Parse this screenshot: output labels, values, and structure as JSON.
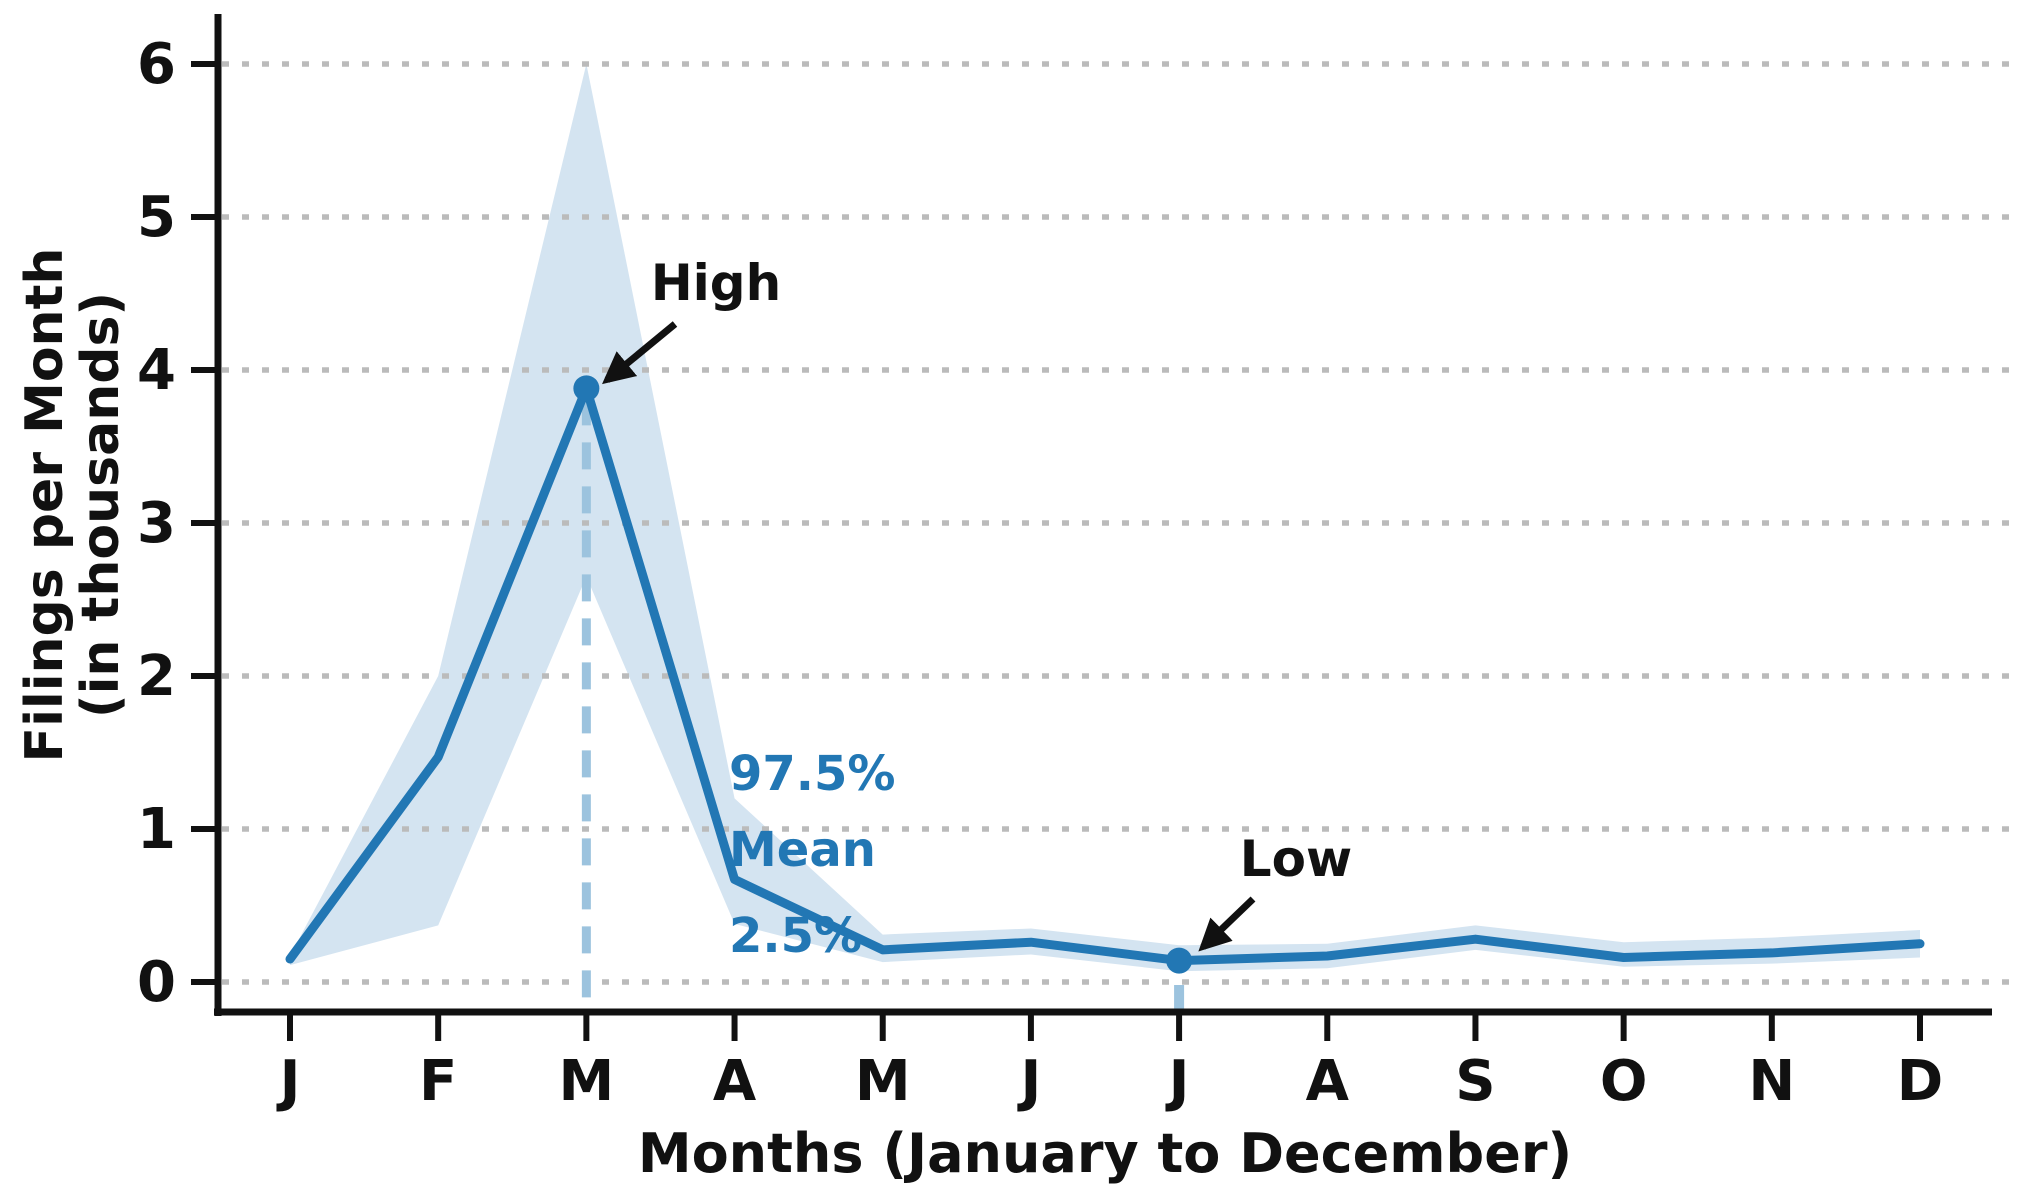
{
  "chart_data": {
    "type": "line",
    "title": "",
    "xlabel": "Months (January to December)",
    "ylabel_lines": [
      "Filings per Month",
      "(in thousands)"
    ],
    "x_tick_labels": [
      "J",
      "F",
      "M",
      "A",
      "M",
      "J",
      "J",
      "A",
      "S",
      "O",
      "N",
      "D"
    ],
    "y_ticks": [
      0,
      1,
      2,
      3,
      4,
      5,
      6
    ],
    "ylim": [
      0,
      6.3
    ],
    "grid": {
      "axis": "y",
      "style": "dotted"
    },
    "legend_position": "none",
    "series": [
      {
        "name": "Mean",
        "role": "mean-line",
        "values": [
          0.15,
          1.47,
          3.88,
          0.67,
          0.21,
          0.26,
          0.14,
          0.17,
          0.28,
          0.16,
          0.19,
          0.25
        ]
      },
      {
        "name": "97.5%",
        "role": "band-upper",
        "values": [
          0.17,
          2.0,
          6.0,
          1.2,
          0.31,
          0.35,
          0.24,
          0.25,
          0.37,
          0.26,
          0.29,
          0.34
        ]
      },
      {
        "name": "2.5%",
        "role": "band-lower",
        "values": [
          0.11,
          0.37,
          2.65,
          0.38,
          0.13,
          0.18,
          0.07,
          0.09,
          0.21,
          0.1,
          0.12,
          0.16
        ]
      }
    ],
    "band_labels": {
      "upper": "97.5%",
      "mean": "Mean",
      "lower": "2.5%"
    },
    "annotations": [
      {
        "id": "high",
        "text": "High",
        "month_index": 2,
        "value": 3.88
      },
      {
        "id": "low",
        "text": "Low",
        "month_index": 6,
        "value": 0.14
      }
    ],
    "guides": [
      {
        "id": "march-guide",
        "month_index": 2,
        "style": "dashed",
        "from_value": 3.88,
        "to_value": 0
      },
      {
        "id": "july-guide",
        "month_index": 6,
        "style": "solid-stub",
        "from_value": 0.0,
        "to_value": 0
      }
    ],
    "colors": {
      "line": "#2277b4",
      "band": "#d4e4f1",
      "dashed_guide": "#9cc3de",
      "grid": "#bbbbbb",
      "axis": "#111111",
      "annotation_text": "#111111",
      "band_label_text": "#2277b4",
      "background": "#ffffff"
    }
  }
}
